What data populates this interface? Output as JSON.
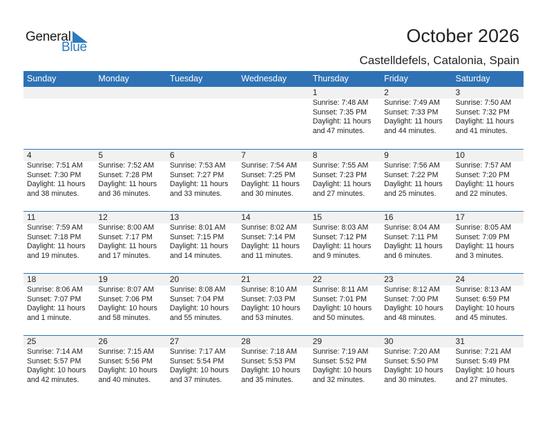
{
  "logo": {
    "text_general": "General",
    "text_blue": "Blue",
    "brand_color": "#2a7bc0"
  },
  "header": {
    "title": "October 2026",
    "location": "Castelldefels, Catalonia, Spain"
  },
  "calendar": {
    "header_color": "#2e72b5",
    "weekdays": [
      "Sunday",
      "Monday",
      "Tuesday",
      "Wednesday",
      "Thursday",
      "Friday",
      "Saturday"
    ],
    "weeks": [
      [
        null,
        null,
        null,
        null,
        {
          "day": "1",
          "sunrise": "Sunrise: 7:48 AM",
          "sunset": "Sunset: 7:35 PM",
          "daylight1": "Daylight: 11 hours",
          "daylight2": "and 47 minutes."
        },
        {
          "day": "2",
          "sunrise": "Sunrise: 7:49 AM",
          "sunset": "Sunset: 7:33 PM",
          "daylight1": "Daylight: 11 hours",
          "daylight2": "and 44 minutes."
        },
        {
          "day": "3",
          "sunrise": "Sunrise: 7:50 AM",
          "sunset": "Sunset: 7:32 PM",
          "daylight1": "Daylight: 11 hours",
          "daylight2": "and 41 minutes."
        }
      ],
      [
        {
          "day": "4",
          "sunrise": "Sunrise: 7:51 AM",
          "sunset": "Sunset: 7:30 PM",
          "daylight1": "Daylight: 11 hours",
          "daylight2": "and 38 minutes."
        },
        {
          "day": "5",
          "sunrise": "Sunrise: 7:52 AM",
          "sunset": "Sunset: 7:28 PM",
          "daylight1": "Daylight: 11 hours",
          "daylight2": "and 36 minutes."
        },
        {
          "day": "6",
          "sunrise": "Sunrise: 7:53 AM",
          "sunset": "Sunset: 7:27 PM",
          "daylight1": "Daylight: 11 hours",
          "daylight2": "and 33 minutes."
        },
        {
          "day": "7",
          "sunrise": "Sunrise: 7:54 AM",
          "sunset": "Sunset: 7:25 PM",
          "daylight1": "Daylight: 11 hours",
          "daylight2": "and 30 minutes."
        },
        {
          "day": "8",
          "sunrise": "Sunrise: 7:55 AM",
          "sunset": "Sunset: 7:23 PM",
          "daylight1": "Daylight: 11 hours",
          "daylight2": "and 27 minutes."
        },
        {
          "day": "9",
          "sunrise": "Sunrise: 7:56 AM",
          "sunset": "Sunset: 7:22 PM",
          "daylight1": "Daylight: 11 hours",
          "daylight2": "and 25 minutes."
        },
        {
          "day": "10",
          "sunrise": "Sunrise: 7:57 AM",
          "sunset": "Sunset: 7:20 PM",
          "daylight1": "Daylight: 11 hours",
          "daylight2": "and 22 minutes."
        }
      ],
      [
        {
          "day": "11",
          "sunrise": "Sunrise: 7:59 AM",
          "sunset": "Sunset: 7:18 PM",
          "daylight1": "Daylight: 11 hours",
          "daylight2": "and 19 minutes."
        },
        {
          "day": "12",
          "sunrise": "Sunrise: 8:00 AM",
          "sunset": "Sunset: 7:17 PM",
          "daylight1": "Daylight: 11 hours",
          "daylight2": "and 17 minutes."
        },
        {
          "day": "13",
          "sunrise": "Sunrise: 8:01 AM",
          "sunset": "Sunset: 7:15 PM",
          "daylight1": "Daylight: 11 hours",
          "daylight2": "and 14 minutes."
        },
        {
          "day": "14",
          "sunrise": "Sunrise: 8:02 AM",
          "sunset": "Sunset: 7:14 PM",
          "daylight1": "Daylight: 11 hours",
          "daylight2": "and 11 minutes."
        },
        {
          "day": "15",
          "sunrise": "Sunrise: 8:03 AM",
          "sunset": "Sunset: 7:12 PM",
          "daylight1": "Daylight: 11 hours",
          "daylight2": "and 9 minutes."
        },
        {
          "day": "16",
          "sunrise": "Sunrise: 8:04 AM",
          "sunset": "Sunset: 7:11 PM",
          "daylight1": "Daylight: 11 hours",
          "daylight2": "and 6 minutes."
        },
        {
          "day": "17",
          "sunrise": "Sunrise: 8:05 AM",
          "sunset": "Sunset: 7:09 PM",
          "daylight1": "Daylight: 11 hours",
          "daylight2": "and 3 minutes."
        }
      ],
      [
        {
          "day": "18",
          "sunrise": "Sunrise: 8:06 AM",
          "sunset": "Sunset: 7:07 PM",
          "daylight1": "Daylight: 11 hours",
          "daylight2": "and 1 minute."
        },
        {
          "day": "19",
          "sunrise": "Sunrise: 8:07 AM",
          "sunset": "Sunset: 7:06 PM",
          "daylight1": "Daylight: 10 hours",
          "daylight2": "and 58 minutes."
        },
        {
          "day": "20",
          "sunrise": "Sunrise: 8:08 AM",
          "sunset": "Sunset: 7:04 PM",
          "daylight1": "Daylight: 10 hours",
          "daylight2": "and 55 minutes."
        },
        {
          "day": "21",
          "sunrise": "Sunrise: 8:10 AM",
          "sunset": "Sunset: 7:03 PM",
          "daylight1": "Daylight: 10 hours",
          "daylight2": "and 53 minutes."
        },
        {
          "day": "22",
          "sunrise": "Sunrise: 8:11 AM",
          "sunset": "Sunset: 7:01 PM",
          "daylight1": "Daylight: 10 hours",
          "daylight2": "and 50 minutes."
        },
        {
          "day": "23",
          "sunrise": "Sunrise: 8:12 AM",
          "sunset": "Sunset: 7:00 PM",
          "daylight1": "Daylight: 10 hours",
          "daylight2": "and 48 minutes."
        },
        {
          "day": "24",
          "sunrise": "Sunrise: 8:13 AM",
          "sunset": "Sunset: 6:59 PM",
          "daylight1": "Daylight: 10 hours",
          "daylight2": "and 45 minutes."
        }
      ],
      [
        {
          "day": "25",
          "sunrise": "Sunrise: 7:14 AM",
          "sunset": "Sunset: 5:57 PM",
          "daylight1": "Daylight: 10 hours",
          "daylight2": "and 42 minutes."
        },
        {
          "day": "26",
          "sunrise": "Sunrise: 7:15 AM",
          "sunset": "Sunset: 5:56 PM",
          "daylight1": "Daylight: 10 hours",
          "daylight2": "and 40 minutes."
        },
        {
          "day": "27",
          "sunrise": "Sunrise: 7:17 AM",
          "sunset": "Sunset: 5:54 PM",
          "daylight1": "Daylight: 10 hours",
          "daylight2": "and 37 minutes."
        },
        {
          "day": "28",
          "sunrise": "Sunrise: 7:18 AM",
          "sunset": "Sunset: 5:53 PM",
          "daylight1": "Daylight: 10 hours",
          "daylight2": "and 35 minutes."
        },
        {
          "day": "29",
          "sunrise": "Sunrise: 7:19 AM",
          "sunset": "Sunset: 5:52 PM",
          "daylight1": "Daylight: 10 hours",
          "daylight2": "and 32 minutes."
        },
        {
          "day": "30",
          "sunrise": "Sunrise: 7:20 AM",
          "sunset": "Sunset: 5:50 PM",
          "daylight1": "Daylight: 10 hours",
          "daylight2": "and 30 minutes."
        },
        {
          "day": "31",
          "sunrise": "Sunrise: 7:21 AM",
          "sunset": "Sunset: 5:49 PM",
          "daylight1": "Daylight: 10 hours",
          "daylight2": "and 27 minutes."
        }
      ]
    ]
  }
}
